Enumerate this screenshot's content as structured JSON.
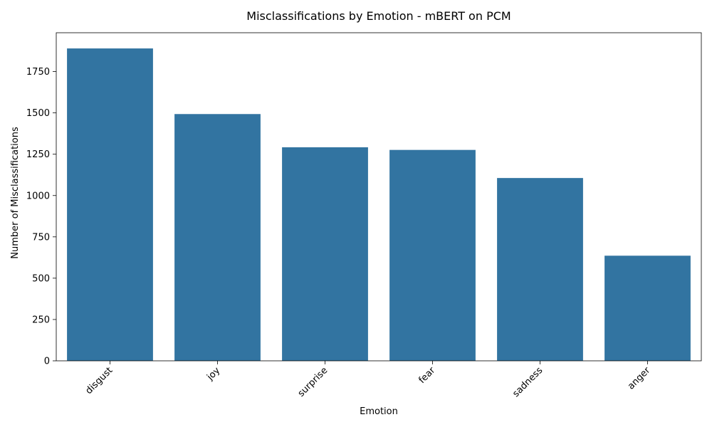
{
  "chart_data": {
    "type": "bar",
    "title": "Misclassifications by Emotion - mBERT on PCM",
    "xlabel": "Emotion",
    "ylabel": "Number of Misclassifications",
    "categories": [
      "disgust",
      "joy",
      "surprise",
      "fear",
      "sadness",
      "anger"
    ],
    "values": [
      1890,
      1493,
      1292,
      1276,
      1106,
      636
    ],
    "ylim": [
      0,
      1985
    ],
    "yticks": [
      0,
      250,
      500,
      750,
      1000,
      1250,
      1500,
      1750
    ],
    "ytick_labels": [
      "0",
      "250",
      "500",
      "750",
      "1000",
      "1250",
      "1500",
      "1750"
    ],
    "bar_color": "#3274a1",
    "grid": false,
    "legend": "none",
    "xtick_rotation_deg": 45
  }
}
